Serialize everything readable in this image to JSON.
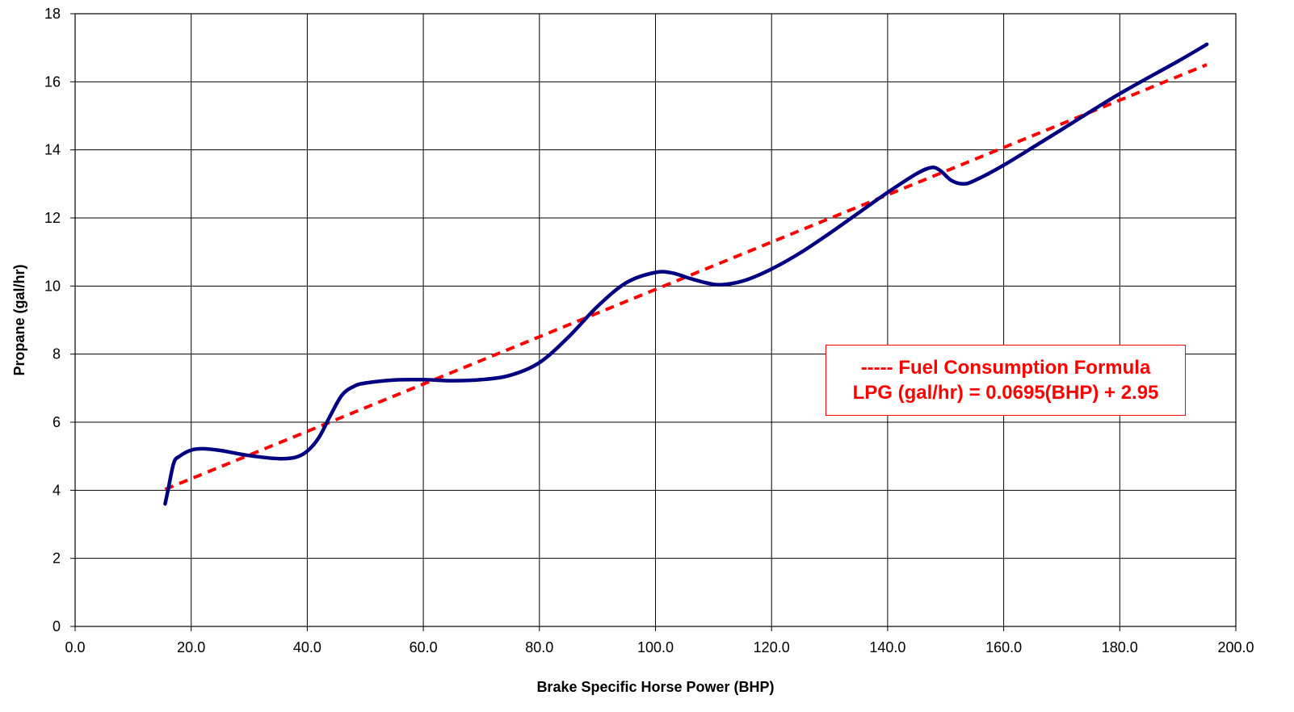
{
  "chart_data": {
    "type": "line",
    "xlabel": "Brake Specific Horse Power (BHP)",
    "ylabel": "Propane (gal/hr)",
    "xlim": [
      0,
      200
    ],
    "ylim": [
      0,
      18
    ],
    "x_ticks": [
      "0.0",
      "20.0",
      "40.0",
      "60.0",
      "80.0",
      "100.0",
      "120.0",
      "140.0",
      "160.0",
      "180.0",
      "200.0"
    ],
    "y_ticks": [
      "0",
      "2",
      "4",
      "6",
      "8",
      "10",
      "12",
      "14",
      "16",
      "18"
    ],
    "grid": true,
    "series": [
      {
        "color": "#000080",
        "style": "solid",
        "points": [
          [
            15.5,
            3.6
          ],
          [
            16.0,
            4.0
          ],
          [
            17.0,
            4.8
          ],
          [
            18.0,
            5.0
          ],
          [
            20.0,
            5.18
          ],
          [
            22.0,
            5.22
          ],
          [
            25.0,
            5.17
          ],
          [
            30.0,
            5.02
          ],
          [
            35.0,
            4.93
          ],
          [
            38.0,
            4.97
          ],
          [
            40.0,
            5.15
          ],
          [
            42.0,
            5.55
          ],
          [
            44.0,
            6.2
          ],
          [
            46.0,
            6.8
          ],
          [
            48.0,
            7.05
          ],
          [
            50.0,
            7.15
          ],
          [
            55.0,
            7.24
          ],
          [
            60.0,
            7.25
          ],
          [
            65.0,
            7.22
          ],
          [
            70.0,
            7.25
          ],
          [
            75.0,
            7.38
          ],
          [
            80.0,
            7.75
          ],
          [
            85.0,
            8.5
          ],
          [
            90.0,
            9.4
          ],
          [
            95.0,
            10.1
          ],
          [
            100.0,
            10.4
          ],
          [
            103.0,
            10.38
          ],
          [
            106.0,
            10.22
          ],
          [
            110.0,
            10.05
          ],
          [
            113.0,
            10.07
          ],
          [
            116.0,
            10.2
          ],
          [
            120.0,
            10.5
          ],
          [
            125.0,
            10.98
          ],
          [
            130.0,
            11.55
          ],
          [
            135.0,
            12.15
          ],
          [
            140.0,
            12.75
          ],
          [
            145.0,
            13.3
          ],
          [
            147.5,
            13.48
          ],
          [
            149.0,
            13.4
          ],
          [
            151.0,
            13.1
          ],
          [
            153.0,
            13.0
          ],
          [
            155.0,
            13.1
          ],
          [
            160.0,
            13.55
          ],
          [
            170.0,
            14.6
          ],
          [
            180.0,
            15.65
          ],
          [
            190.0,
            16.6
          ],
          [
            195.0,
            17.1
          ]
        ]
      },
      {
        "color": "#ff0000",
        "style": "dashed",
        "equation": {
          "slope": 0.0695,
          "intercept": 2.95
        },
        "x_range": [
          15.5,
          195.0
        ]
      }
    ],
    "annotation": {
      "line1": "----- Fuel Consumption Formula",
      "line2": "LPG (gal/hr) = 0.0695(BHP) + 2.95",
      "color": "#ff0000"
    }
  }
}
